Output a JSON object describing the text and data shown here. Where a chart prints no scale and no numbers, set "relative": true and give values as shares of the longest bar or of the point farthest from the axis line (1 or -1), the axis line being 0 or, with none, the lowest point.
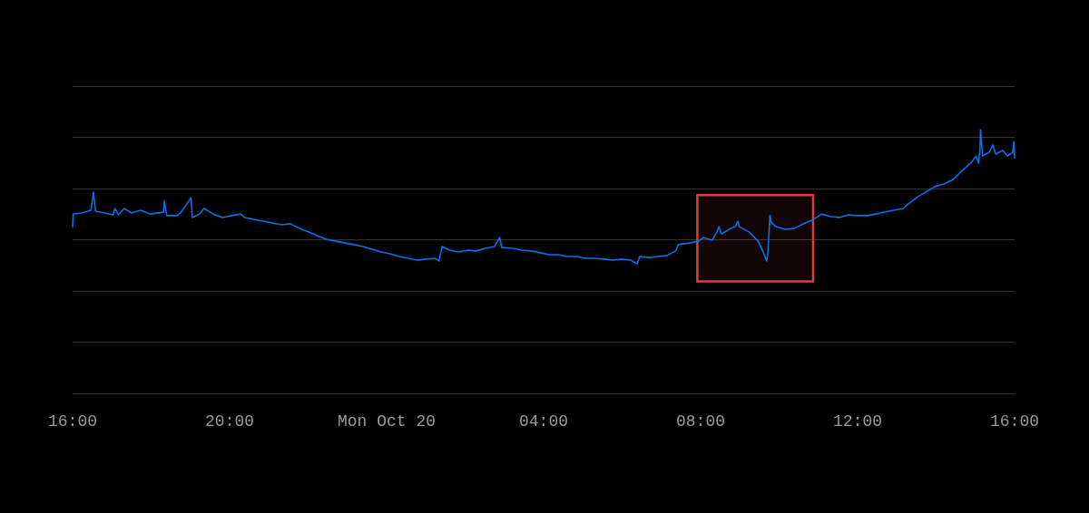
{
  "chart_data": {
    "type": "line",
    "relative": true,
    "grid": "y",
    "marker": "none",
    "line_style": "solid",
    "xlim": [
      "--10-19T16:00",
      "--10-20T16:00"
    ],
    "xticks": [
      {
        "value": "--10-19T16:00",
        "label": "16:00"
      },
      {
        "value": "--10-19T20:00",
        "label": "20:00"
      },
      {
        "value": "--10-20T00:00",
        "label": "Mon Oct 20"
      },
      {
        "value": "--10-20T04:00",
        "label": "04:00"
      },
      {
        "value": "--10-20T08:00",
        "label": "08:00"
      },
      {
        "value": "--10-20T12:00",
        "label": "12:00"
      },
      {
        "value": "--10-20T16:00",
        "label": "16:00"
      }
    ],
    "bands": [
      {
        "axis": "x",
        "from": "--10-20T07:55",
        "to": "--10-20T10:52",
        "color": "#e03c3c"
      }
    ],
    "series": [
      {
        "color": "#0a6fe8",
        "x": [
          "--10-19T16:00",
          "--10-19T16:01",
          "--10-19T16:14",
          "--10-19T16:28",
          "--10-19T16:32",
          "--10-19T16:35",
          "--10-19T16:49",
          "--10-19T17:02",
          "--10-19T17:05",
          "--10-19T17:10",
          "--10-19T17:19",
          "--10-19T17:30",
          "--10-19T17:44",
          "--10-19T17:58",
          "--10-19T18:19",
          "--10-19T18:20",
          "--10-19T18:24",
          "--10-19T18:40",
          "--10-19T18:45",
          "--10-19T19:01",
          "--10-19T19:03",
          "--10-19T19:14",
          "--10-19T19:21",
          "--10-19T19:35",
          "--10-19T19:49",
          "--10-19T20:03",
          "--10-19T20:17",
          "--10-19T20:23",
          "--10-19T20:37",
          "--10-19T20:52",
          "--10-19T21:05",
          "--10-19T21:19",
          "--10-19T21:33",
          "--10-19T21:47",
          "--10-19T22:01",
          "--10-19T22:14",
          "--10-19T22:28",
          "--10-19T22:43",
          "--10-19T22:56",
          "--10-19T23:10",
          "--10-19T23:24",
          "--10-19T23:38",
          "--10-19T23:52",
          "--10-20T00:05",
          "--10-20T00:19",
          "--10-20T00:33",
          "--10-20T00:47",
          "--10-20T01:01",
          "--10-20T01:15",
          "--10-20T01:20",
          "--10-20T01:25",
          "--10-20T01:36",
          "--10-20T01:50",
          "--10-20T02:04",
          "--10-20T02:17",
          "--10-20T02:31",
          "--10-20T02:45",
          "--10-20T02:53",
          "--10-20T02:56",
          "--10-20T03:13",
          "--10-20T03:27",
          "--10-20T03:41",
          "--10-20T03:55",
          "--10-20T04:08",
          "--10-20T04:22",
          "--10-20T04:36",
          "--10-20T04:50",
          "--10-20T05:04",
          "--10-20T05:17",
          "--10-20T05:32",
          "--10-20T05:46",
          "--10-20T05:59",
          "--10-20T06:13",
          "--10-20T06:23",
          "--10-20T06:27",
          "--10-20T06:41",
          "--10-20T06:55",
          "--10-20T07:08",
          "--10-20T07:22",
          "--10-20T07:26",
          "--10-20T07:43",
          "--10-20T07:57",
          "--10-20T08:04",
          "--10-20T08:18",
          "--10-20T08:25",
          "--10-20T08:28",
          "--10-20T08:32",
          "--10-20T08:46",
          "--10-20T08:53",
          "--10-20T08:57",
          "--10-20T08:59",
          "--10-20T09:14",
          "--10-20T09:28",
          "--10-20T09:34",
          "--10-20T09:41",
          "--10-20T09:43",
          "--10-20T09:46",
          "--10-20T09:48",
          "--10-20T09:55",
          "--10-20T10:09",
          "--10-20T10:23",
          "--10-20T10:37",
          "--10-20T10:50",
          "--10-20T11:05",
          "--10-20T11:19",
          "--10-20T11:32",
          "--10-20T11:46",
          "--10-20T12:00",
          "--10-20T12:14",
          "--10-20T12:28",
          "--10-20T12:41",
          "--10-20T12:55",
          "--10-20T13:10",
          "--10-20T13:16",
          "--10-20T13:30",
          "--10-20T13:44",
          "--10-20T13:58",
          "--10-20T14:12",
          "--10-20T14:26",
          "--10-20T14:40",
          "--10-20T14:53",
          "--10-20T15:01",
          "--10-20T15:05",
          "--10-20T15:07",
          "--10-20T15:08",
          "--10-20T15:11",
          "--10-20T15:21",
          "--10-20T15:27",
          "--10-20T15:31",
          "--10-20T15:42",
          "--10-20T15:49",
          "--10-20T15:57",
          "--10-20T15:59",
          "--10-20T16:00"
        ],
        "values": [
          0.632,
          0.68,
          0.684,
          0.694,
          0.763,
          0.691,
          0.684,
          0.677,
          0.701,
          0.677,
          0.701,
          0.684,
          0.694,
          0.68,
          0.687,
          0.729,
          0.674,
          0.674,
          0.684,
          0.742,
          0.667,
          0.68,
          0.701,
          0.68,
          0.667,
          0.674,
          0.68,
          0.667,
          0.66,
          0.653,
          0.646,
          0.639,
          0.643,
          0.625,
          0.612,
          0.598,
          0.584,
          0.577,
          0.57,
          0.564,
          0.557,
          0.546,
          0.536,
          0.529,
          0.519,
          0.512,
          0.505,
          0.509,
          0.512,
          0.502,
          0.557,
          0.543,
          0.536,
          0.543,
          0.54,
          0.55,
          0.557,
          0.591,
          0.553,
          0.55,
          0.543,
          0.54,
          0.533,
          0.526,
          0.526,
          0.519,
          0.519,
          0.512,
          0.512,
          0.509,
          0.505,
          0.509,
          0.505,
          0.491,
          0.519,
          0.515,
          0.519,
          0.522,
          0.54,
          0.564,
          0.57,
          0.577,
          0.591,
          0.581,
          0.612,
          0.632,
          0.605,
          0.625,
          0.632,
          0.653,
          0.632,
          0.612,
          0.577,
          0.546,
          0.502,
          0.536,
          0.674,
          0.649,
          0.632,
          0.622,
          0.625,
          0.643,
          0.656,
          0.68,
          0.67,
          0.667,
          0.677,
          0.674,
          0.674,
          0.68,
          0.687,
          0.694,
          0.701,
          0.715,
          0.742,
          0.763,
          0.784,
          0.794,
          0.811,
          0.845,
          0.873,
          0.9,
          0.873,
          0.924,
          1,
          0.9,
          0.914,
          0.942,
          0.907,
          0.921,
          0.9,
          0.914,
          0.955,
          0.893
        ]
      }
    ]
  }
}
